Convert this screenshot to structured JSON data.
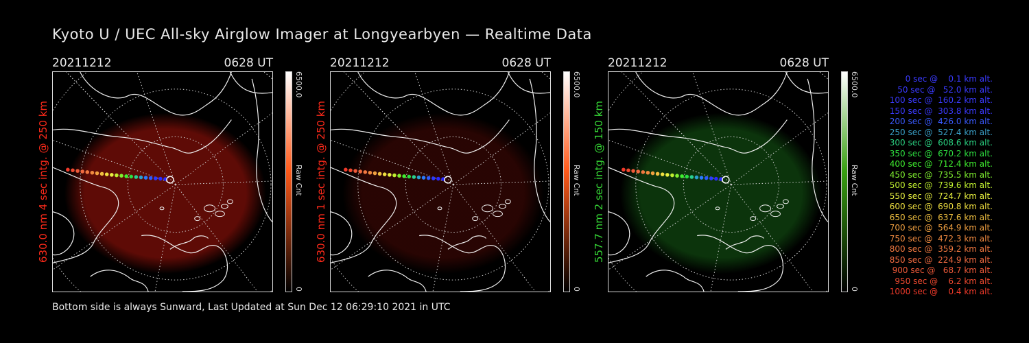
{
  "title": "Kyoto U / UEC All-sky Airglow Imager at Longyearbyen — Realtime Data",
  "footer": "Bottom side is always Sunward, Last Updated at Sun Dec 12 06:29:10 2021 in UTC",
  "panels": [
    {
      "date": "20211212",
      "time": "0628 UT",
      "ylabel": "630.0 nm  4 sec intg. @ 250 km",
      "label_color": "#ff2a1a",
      "cmax": "6500.0",
      "cmin": "0",
      "cunit": "Raw Cnt",
      "glow": "#6e0d07",
      "glow_opacity": 0.85,
      "bar_top": "#ffffff",
      "bar_mid": "#ff5a1a",
      "bar_bot": "#000000"
    },
    {
      "date": "20211212",
      "time": "0628 UT",
      "ylabel": "630.0 nm  1 sec intg. @ 250 km",
      "label_color": "#ff2a1a",
      "cmax": "6500.0",
      "cmin": "0",
      "cunit": "Raw Cnt",
      "glow": "#3a0704",
      "glow_opacity": 0.7,
      "bar_top": "#ffffff",
      "bar_mid": "#ff5a1a",
      "bar_bot": "#000000"
    },
    {
      "date": "20211212",
      "time": "0628 UT",
      "ylabel": "557.7 nm  2 sec intg. @ 150 km",
      "label_color": "#36d936",
      "cmax": "6500.0",
      "cmin": "0",
      "cunit": "Raw Cnt",
      "glow": "#0d3a0d",
      "glow_opacity": 0.9,
      "bar_top": "#ffffff",
      "bar_mid": "#39a012",
      "bar_bot": "#000000"
    }
  ],
  "legend": [
    {
      "text": "   0 sec @    0.1 km alt.",
      "color": "#3a3aff"
    },
    {
      "text": "  50 sec @   52.0 km alt.",
      "color": "#3a3aff"
    },
    {
      "text": " 100 sec @  160.2 km alt.",
      "color": "#3a3aff"
    },
    {
      "text": " 150 sec @  303.8 km alt.",
      "color": "#3a3aff"
    },
    {
      "text": " 200 sec @  426.0 km alt.",
      "color": "#3a5aff"
    },
    {
      "text": " 250 sec @  527.4 km alt.",
      "color": "#3aa0c8"
    },
    {
      "text": " 300 sec @  608.6 km alt.",
      "color": "#2ad080"
    },
    {
      "text": " 350 sec @  670.2 km alt.",
      "color": "#2ee040"
    },
    {
      "text": " 400 sec @  712.4 km alt.",
      "color": "#40f030"
    },
    {
      "text": " 450 sec @  735.5 km alt.",
      "color": "#80f030"
    },
    {
      "text": " 500 sec @  739.6 km alt.",
      "color": "#c0f030"
    },
    {
      "text": " 550 sec @  724.7 km alt.",
      "color": "#e8f040"
    },
    {
      "text": " 600 sec @  690.8 km alt.",
      "color": "#f0e040"
    },
    {
      "text": " 650 sec @  637.6 km alt.",
      "color": "#f0c040"
    },
    {
      "text": " 700 sec @  564.9 km alt.",
      "color": "#f0a040"
    },
    {
      "text": " 750 sec @  472.3 km alt.",
      "color": "#f08a40"
    },
    {
      "text": " 800 sec @  359.2 km alt.",
      "color": "#f07840"
    },
    {
      "text": " 850 sec @  224.9 km alt.",
      "color": "#f06a40"
    },
    {
      "text": " 900 sec @   68.7 km alt.",
      "color": "#f05a3a"
    },
    {
      "text": " 950 sec @    6.2 km alt.",
      "color": "#f04a30"
    },
    {
      "text": "1000 sec @    0.4 km alt.",
      "color": "#f03a2a"
    }
  ],
  "track_colors": [
    "#2a2aff",
    "#2a2aff",
    "#2a3aff",
    "#2a5aff",
    "#2a7aff",
    "#2aa0d0",
    "#2ad090",
    "#2ae040",
    "#40f030",
    "#80f030",
    "#c0f030",
    "#e8f040",
    "#f0e040",
    "#f0c040",
    "#f0a040",
    "#f08a40",
    "#f07840",
    "#f06a40",
    "#f05a3a",
    "#f04a30",
    "#f03a2a"
  ]
}
